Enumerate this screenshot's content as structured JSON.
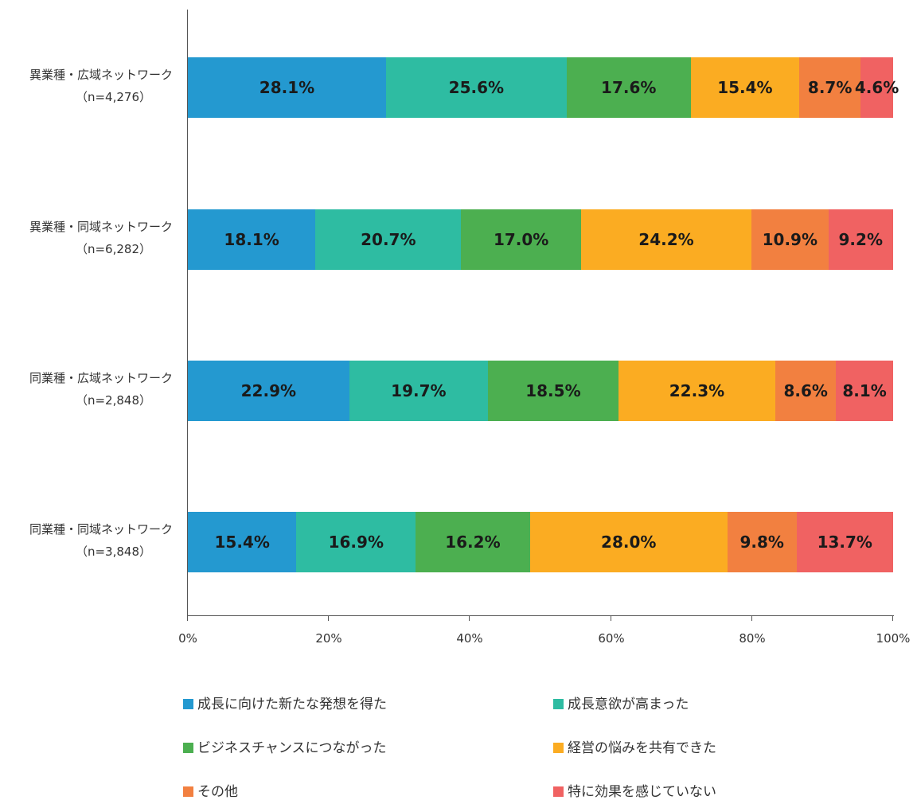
{
  "chart_data": {
    "type": "bar",
    "orientation": "horizontal",
    "stacked": true,
    "normalized": true,
    "title": "",
    "xlabel": "",
    "ylabel": "",
    "xlim": [
      0,
      100
    ],
    "x_ticks": [
      "0%",
      "20%",
      "40%",
      "60%",
      "80%",
      "100%"
    ],
    "grid": false,
    "legend_position": "bottom",
    "categories": [
      {
        "name": "異業種・広域ネットワーク",
        "n": "（n=4,276）"
      },
      {
        "name": "異業種・同域ネットワーク",
        "n": "（n=6,282）"
      },
      {
        "name": "同業種・広域ネットワーク",
        "n": "（n=2,848）"
      },
      {
        "name": "同業種・同域ネットワーク",
        "n": "（n=3,848）"
      }
    ],
    "series": [
      {
        "name": "成長に向けた新たな発想を得た",
        "color": "#2499d0",
        "values": [
          28.1,
          18.1,
          22.9,
          15.4
        ],
        "labels": [
          "28.1%",
          "18.1%",
          "22.9%",
          "15.4%"
        ]
      },
      {
        "name": "成長意欲が高まった",
        "color": "#2ebca2",
        "values": [
          25.6,
          20.7,
          19.7,
          16.9
        ],
        "labels": [
          "25.6%",
          "20.7%",
          "19.7%",
          "16.9%"
        ]
      },
      {
        "name": "ビジネスチャンスにつながった",
        "color": "#4caf50",
        "values": [
          17.6,
          17.0,
          18.5,
          16.2
        ],
        "labels": [
          "17.6%",
          "17.0%",
          "18.5%",
          "16.2%"
        ]
      },
      {
        "name": "経営の悩みを共有できた",
        "color": "#fbac22",
        "values": [
          15.4,
          24.2,
          22.3,
          28.0
        ],
        "labels": [
          "15.4%",
          "24.2%",
          "22.3%",
          "28.0%"
        ]
      },
      {
        "name": "その他",
        "color": "#f28040",
        "values": [
          8.7,
          10.9,
          8.6,
          9.8
        ],
        "labels": [
          "8.7%",
          "10.9%",
          "8.6%",
          "9.8%"
        ]
      },
      {
        "name": "特に効果を感じていない",
        "color": "#f06262",
        "values": [
          4.6,
          9.2,
          8.1,
          13.7
        ],
        "labels": [
          "4.6%",
          "9.2%",
          "8.1%",
          "13.7%"
        ]
      }
    ]
  }
}
